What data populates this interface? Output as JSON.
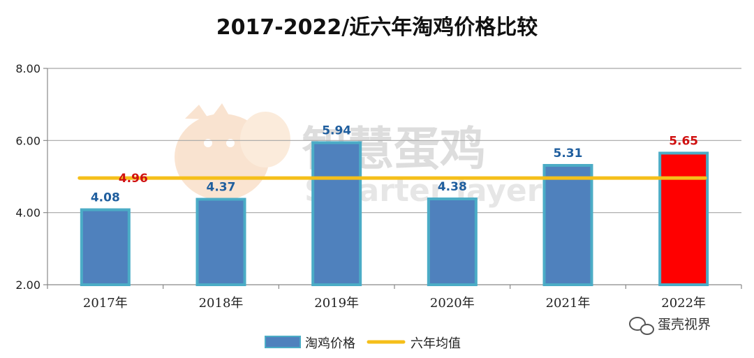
{
  "chart_data": {
    "type": "bar",
    "title": "2017-2022/近六年淘鸡价格比较",
    "categories": [
      "2017年",
      "2018年",
      "2019年",
      "2020年",
      "2021年",
      "2022年"
    ],
    "series": [
      {
        "name": "淘鸡价格",
        "type": "bar",
        "values": [
          4.08,
          4.37,
          5.94,
          4.38,
          5.31,
          5.65
        ],
        "color": "#4f81bd",
        "border_color": "#4bacc6",
        "highlight": {
          "index": 5,
          "color": "#ff0000"
        }
      },
      {
        "name": "六年均值",
        "type": "line",
        "value": 4.96,
        "color": "#f5bf1a"
      }
    ],
    "ylim": [
      2.0,
      8.0
    ],
    "yticks": [
      "2.00",
      "4.00",
      "6.00",
      "8.00"
    ],
    "data_labels": [
      "4.08",
      "4.37",
      "5.94",
      "4.38",
      "5.31",
      "5.65"
    ],
    "mean_label": "4.96",
    "label_colors": {
      "normal": "#1f5e9e",
      "highlight": "#d01010",
      "mean": "#d01010"
    },
    "grid": true,
    "legend": "bottom"
  },
  "watermark": {
    "cn": "智慧蛋鸡",
    "en": "Smarter layer"
  },
  "footer": {
    "brand": "蛋壳视界"
  }
}
